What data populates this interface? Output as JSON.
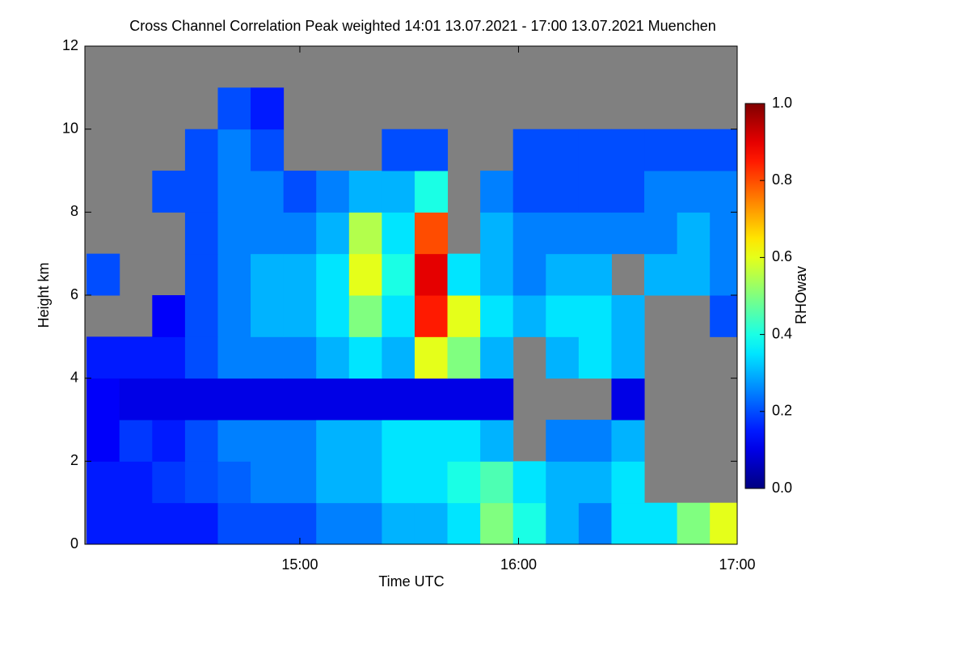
{
  "chart_data": {
    "type": "heatmap",
    "title": "Cross Channel Correlation Peak weighted   14:01 13.07.2021 - 17:00 13.07.2021 Muenchen",
    "x_label": "Time UTC",
    "y_label": "Height km",
    "colorbar_label": "RHOwav",
    "colormap": "jet",
    "nodata_color": "#808080",
    "x": [
      14.1,
      14.25,
      14.4,
      14.55,
      14.7,
      14.85,
      15.0,
      15.15,
      15.3,
      15.45,
      15.6,
      15.75,
      15.9,
      16.05,
      16.2,
      16.35,
      16.5,
      16.65,
      16.8,
      16.95
    ],
    "y": [
      0.5,
      1.5,
      2.5,
      3.5,
      4.5,
      5.5,
      6.5,
      7.5,
      8.5,
      9.5,
      10.5,
      11.5
    ],
    "z": [
      [
        0.15,
        0.15,
        0.15,
        0.15,
        0.2,
        0.2,
        0.2,
        0.25,
        0.25,
        0.3,
        0.3,
        0.35,
        0.5,
        0.4,
        0.3,
        0.25,
        0.35,
        0.35,
        0.5,
        0.6
      ],
      [
        0.15,
        0.15,
        0.18,
        0.2,
        0.22,
        0.25,
        0.25,
        0.3,
        0.3,
        0.35,
        0.35,
        0.4,
        0.45,
        0.35,
        0.3,
        0.3,
        0.35,
        null,
        null,
        null
      ],
      [
        0.12,
        0.18,
        0.15,
        0.2,
        0.25,
        0.25,
        0.25,
        0.3,
        0.3,
        0.35,
        0.35,
        0.35,
        0.3,
        null,
        0.25,
        0.25,
        0.3,
        null,
        null,
        null
      ],
      [
        0.12,
        0.1,
        0.1,
        0.1,
        0.1,
        0.1,
        0.1,
        0.1,
        0.1,
        0.1,
        0.1,
        0.1,
        0.1,
        null,
        null,
        null,
        0.1,
        null,
        null,
        null
      ],
      [
        0.15,
        0.15,
        0.15,
        0.2,
        0.25,
        0.25,
        0.25,
        0.3,
        0.35,
        0.3,
        0.6,
        0.5,
        0.3,
        null,
        0.3,
        0.35,
        0.3,
        null,
        null,
        null
      ],
      [
        null,
        null,
        0.12,
        0.2,
        0.25,
        0.3,
        0.3,
        0.35,
        0.5,
        0.35,
        0.85,
        0.6,
        0.35,
        0.3,
        0.35,
        0.35,
        0.3,
        null,
        null,
        0.2
      ],
      [
        0.2,
        null,
        null,
        0.2,
        0.25,
        0.3,
        0.3,
        0.35,
        0.6,
        0.4,
        0.9,
        0.35,
        0.3,
        0.25,
        0.3,
        0.3,
        null,
        0.3,
        0.3,
        0.25
      ],
      [
        null,
        null,
        null,
        0.2,
        0.25,
        0.25,
        0.25,
        0.3,
        0.55,
        0.35,
        0.8,
        null,
        0.3,
        0.25,
        0.25,
        0.25,
        0.25,
        0.25,
        0.3,
        0.25
      ],
      [
        null,
        null,
        0.2,
        0.2,
        0.25,
        0.25,
        0.2,
        0.25,
        0.3,
        0.3,
        0.4,
        null,
        0.25,
        0.2,
        0.2,
        0.2,
        0.2,
        0.25,
        0.25,
        0.25
      ],
      [
        null,
        null,
        null,
        0.2,
        0.25,
        0.2,
        null,
        null,
        null,
        0.2,
        0.2,
        null,
        null,
        0.2,
        0.2,
        0.2,
        0.2,
        0.2,
        0.2,
        0.2
      ],
      [
        null,
        null,
        null,
        null,
        0.2,
        0.15,
        null,
        null,
        null,
        null,
        null,
        null,
        null,
        null,
        null,
        null,
        null,
        null,
        null,
        null
      ],
      [
        null,
        null,
        null,
        null,
        null,
        null,
        null,
        null,
        null,
        null,
        null,
        null,
        null,
        null,
        null,
        null,
        null,
        null,
        null,
        null
      ]
    ],
    "xlim": [
      14.017,
      17.0
    ],
    "xticks": [
      {
        "value": 15,
        "label": "15:00"
      },
      {
        "value": 16,
        "label": "16:00"
      },
      {
        "value": 17,
        "label": "17:00"
      }
    ],
    "ylim": [
      0,
      12
    ],
    "yticks": [
      0,
      2,
      4,
      6,
      8,
      10,
      12
    ],
    "zlim": [
      0,
      1
    ],
    "zticks": [
      {
        "value": 0,
        "label": "0.0"
      },
      0.2,
      0.4,
      0.6,
      0.8,
      {
        "value": 1,
        "label": "1.0"
      }
    ]
  }
}
